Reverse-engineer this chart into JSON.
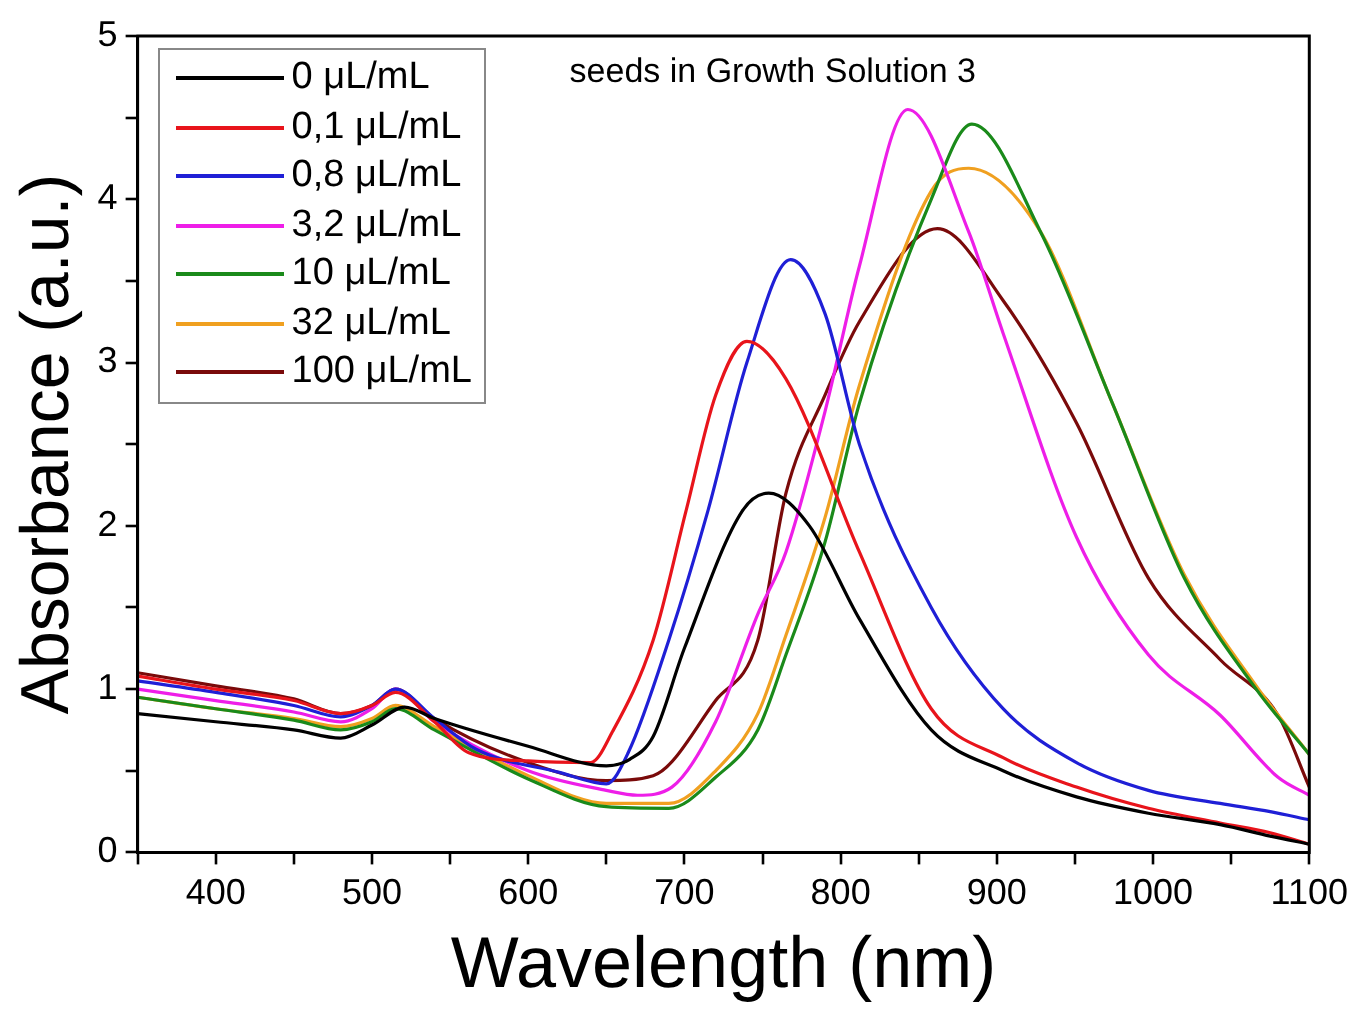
{
  "chart_data": {
    "type": "line",
    "xlabel": "Wavelength (nm)",
    "ylabel": "Absorbance (a.u.)",
    "annotations": [
      "seeds in Growth Solution 3"
    ],
    "xlim": [
      350,
      1100
    ],
    "xticks": [
      400,
      500,
      600,
      700,
      800,
      900,
      1000,
      1100
    ],
    "ylim": [
      0,
      5
    ],
    "yticks": [
      0,
      1,
      2,
      3,
      4,
      5
    ],
    "grid": false,
    "legend": "top left",
    "marker": "none",
    "line_style": "solid",
    "series": [
      {
        "name": "0 μL/mL",
        "color": "#000000",
        "x": [
          350,
          400,
          450,
          480,
          500,
          521,
          540,
          600,
          650,
          665,
          680,
          700,
          737,
          754,
          780,
          812,
          858,
          904,
          951,
          997,
          1043,
          1075,
          1100
        ],
        "values": [
          0.85,
          0.8,
          0.75,
          0.7,
          0.78,
          0.89,
          0.82,
          0.65,
          0.53,
          0.57,
          0.71,
          1.25,
          2.09,
          2.2,
          2.0,
          1.43,
          0.75,
          0.5,
          0.34,
          0.24,
          0.17,
          0.1,
          0.05
        ]
      },
      {
        "name": "0,1 μL/mL",
        "color": "#e8141b",
        "x": [
          350,
          400,
          450,
          480,
          500,
          515,
          540,
          562,
          600,
          640,
          654,
          680,
          701,
          720,
          740,
          765,
          812,
          858,
          904,
          951,
          997,
          1043,
          1075,
          1100
        ],
        "values": [
          1.08,
          1.0,
          0.93,
          0.85,
          0.9,
          0.98,
          0.8,
          0.61,
          0.56,
          0.55,
          0.74,
          1.3,
          2.09,
          2.8,
          3.13,
          2.9,
          1.84,
          0.88,
          0.58,
          0.4,
          0.27,
          0.18,
          0.12,
          0.05
        ]
      },
      {
        "name": "0,8 μL/mL",
        "color": "#1f1fd6",
        "x": [
          350,
          400,
          450,
          480,
          500,
          515,
          540,
          567,
          620,
          650,
          664,
          690,
          715,
          740,
          768,
          790,
          812,
          858,
          904,
          951,
          997,
          1043,
          1075,
          1100
        ],
        "values": [
          1.05,
          0.98,
          0.9,
          0.83,
          0.9,
          1.0,
          0.82,
          0.63,
          0.49,
          0.42,
          0.61,
          1.3,
          2.09,
          3.0,
          3.63,
          3.3,
          2.5,
          1.5,
          0.88,
          0.55,
          0.38,
          0.3,
          0.25,
          0.2
        ]
      },
      {
        "name": "3,2 μL/mL",
        "color": "#ee1ee8",
        "x": [
          350,
          400,
          450,
          480,
          500,
          515,
          540,
          600,
          650,
          670,
          692,
          720,
          747,
          765,
          790,
          812,
          843,
          882,
          904,
          951,
          997,
          1043,
          1080,
          1100
        ],
        "values": [
          1.0,
          0.93,
          0.86,
          0.8,
          0.88,
          1.0,
          0.8,
          0.5,
          0.38,
          0.35,
          0.4,
          0.8,
          1.46,
          1.84,
          2.7,
          3.59,
          4.55,
          3.8,
          3.18,
          1.93,
          1.21,
          0.84,
          0.46,
          0.35
        ]
      },
      {
        "name": "10 μL/mL",
        "color": "#1a8a1a",
        "x": [
          350,
          400,
          450,
          480,
          500,
          515,
          540,
          600,
          650,
          690,
          720,
          747,
          765,
          790,
          812,
          858,
          884,
          928,
          974,
          1020,
          1066,
          1100
        ],
        "values": [
          0.95,
          0.88,
          0.81,
          0.75,
          0.8,
          0.88,
          0.75,
          0.45,
          0.28,
          0.27,
          0.46,
          0.75,
          1.21,
          1.9,
          2.75,
          4.0,
          4.46,
          3.8,
          2.75,
          1.68,
          1.0,
          0.6
        ]
      },
      {
        "name": "32 μL/mL",
        "color": "#f0a020",
        "x": [
          350,
          400,
          450,
          480,
          500,
          515,
          540,
          600,
          650,
          690,
          720,
          747,
          765,
          790,
          812,
          858,
          882,
          928,
          974,
          1020,
          1066,
          1100
        ],
        "values": [
          0.95,
          0.88,
          0.82,
          0.77,
          0.82,
          0.9,
          0.77,
          0.47,
          0.3,
          0.3,
          0.5,
          0.85,
          1.33,
          2.05,
          2.86,
          4.05,
          4.19,
          3.8,
          2.75,
          1.7,
          1.02,
          0.6
        ]
      },
      {
        "name": "100 μL/mL",
        "color": "#7a0a0a",
        "x": [
          350,
          400,
          450,
          480,
          500,
          515,
          540,
          600,
          650,
          680,
          720,
          747,
          765,
          790,
          812,
          862,
          904,
          951,
          997,
          1043,
          1080,
          1100
        ],
        "values": [
          1.1,
          1.02,
          0.94,
          0.85,
          0.9,
          1.0,
          0.82,
          0.55,
          0.44,
          0.47,
          0.93,
          1.3,
          2.2,
          2.8,
          3.25,
          3.82,
          3.38,
          2.63,
          1.68,
          1.18,
          0.84,
          0.4
        ]
      }
    ]
  }
}
